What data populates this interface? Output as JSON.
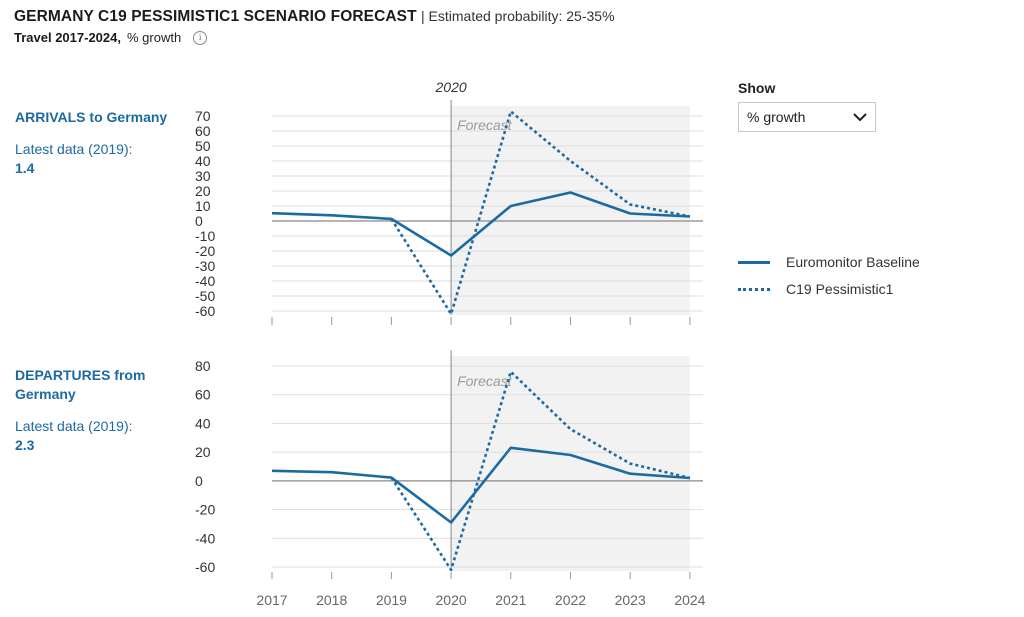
{
  "header": {
    "title": "GERMANY C19 PESSIMISTIC1 SCENARIO FORECAST",
    "probability": "| Estimated probability: 25-35%",
    "subtitle_bold": "Travel 2017-2024,",
    "subtitle_unit": "% growth",
    "info_icon": "info-icon"
  },
  "show": {
    "label": "Show",
    "selected": "% growth",
    "icon": "chevron-down-icon"
  },
  "legend": [
    {
      "label": "Euromonitor Baseline",
      "style": "solid"
    },
    {
      "label": "C19 Pessimistic1",
      "style": "dotted"
    }
  ],
  "colors": {
    "series": "#1d6aa0",
    "forecast_bg": "#f2f2f2",
    "grid": "#dddddd",
    "axis": "#888888"
  },
  "chart_data": [
    {
      "type": "line",
      "panel": "arrivals",
      "title": "ARRIVALS to Germany",
      "latest_label": "Latest data (2019):",
      "latest_value": "1.4",
      "top_label": "2020",
      "forecast_label": "Forecast",
      "forecast_start": "2020",
      "categories": [
        "2017",
        "2018",
        "2019",
        "2020",
        "2021",
        "2022",
        "2023",
        "2024"
      ],
      "yticks": [
        70,
        60,
        50,
        40,
        30,
        20,
        10,
        0,
        -10,
        -20,
        -30,
        -40,
        -50,
        -60
      ],
      "ylim": [
        -60,
        70
      ],
      "series": [
        {
          "name": "Euromonitor Baseline",
          "style": "solid",
          "values": [
            5.2,
            3.8,
            1.4,
            -23,
            10,
            19,
            5,
            3
          ]
        },
        {
          "name": "C19 Pessimistic1",
          "style": "dotted",
          "values": [
            null,
            null,
            1.4,
            -62,
            73,
            40,
            11,
            3
          ]
        }
      ]
    },
    {
      "type": "line",
      "panel": "departures",
      "title": "DEPARTURES from Germany",
      "latest_label": "Latest data (2019):",
      "latest_value": "2.3",
      "forecast_label": "Forecast",
      "forecast_start": "2020",
      "categories": [
        "2017",
        "2018",
        "2019",
        "2020",
        "2021",
        "2022",
        "2023",
        "2024"
      ],
      "yticks": [
        80,
        60,
        40,
        20,
        0,
        -20,
        -40,
        -60
      ],
      "ylim": [
        -60,
        80
      ],
      "series": [
        {
          "name": "Euromonitor Baseline",
          "style": "solid",
          "values": [
            7,
            6,
            2.3,
            -29,
            23,
            18,
            5,
            2
          ]
        },
        {
          "name": "C19 Pessimistic1",
          "style": "dotted",
          "values": [
            null,
            null,
            2.3,
            -62,
            76,
            36,
            12,
            2
          ]
        }
      ]
    }
  ]
}
